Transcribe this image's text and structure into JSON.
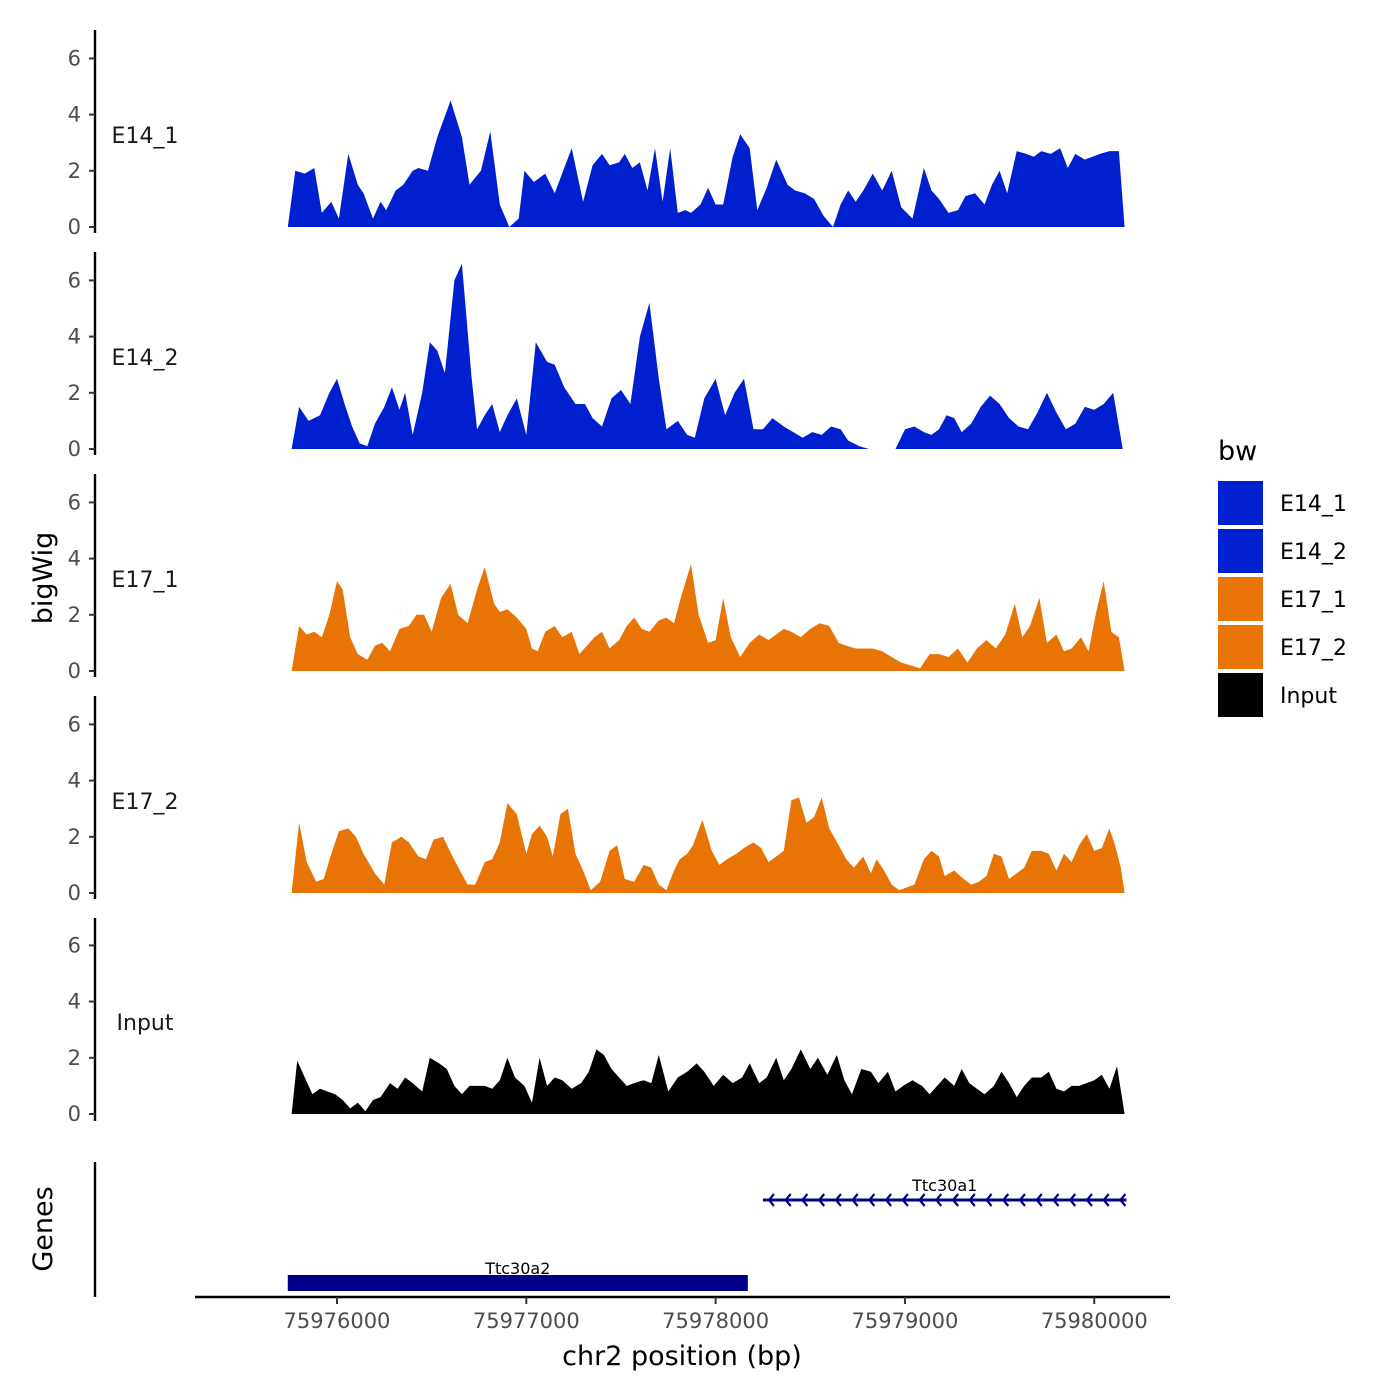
{
  "chart_data": {
    "type": "area",
    "y_axis_title": "bigWig",
    "x_axis_title": "chr2 position (bp)",
    "x_range": [
      75975250,
      75980400
    ],
    "x_ticks": [
      75976000,
      75977000,
      75978000,
      75979000,
      75980000
    ],
    "x_tick_labels": [
      "75976000",
      "75977000",
      "75978000",
      "75979000",
      "75980000"
    ],
    "y_range": [
      0,
      7
    ],
    "y_ticks": [
      0,
      2,
      4,
      6
    ],
    "y_tick_labels": [
      "0",
      "2",
      "4",
      "6"
    ],
    "tracks": [
      {
        "name": "E14_1",
        "color": "#0020D0",
        "x": [
          75975740,
          75975780,
          75975830,
          75975880,
          75975920,
          75975970,
          75976010,
          75976060,
          75976110,
          75976140,
          75976190,
          75976230,
          75976260,
          75976310,
          75976350,
          75976400,
          75976430,
          75976480,
          75976530,
          75976600,
          75976660,
          75976700,
          75976760,
          75976810,
          75976860,
          75976910,
          75976960,
          75976990,
          75977040,
          75977100,
          75977150,
          75977200,
          75977240,
          75977300,
          75977350,
          75977400,
          75977440,
          75977490,
          75977520,
          75977560,
          75977600,
          75977640,
          75977680,
          75977720,
          75977760,
          75977800,
          75977840,
          75977870,
          75977920,
          75977960,
          75978000,
          75978040,
          75978090,
          75978130,
          75978180,
          75978220,
          75978270,
          75978320,
          75978380,
          75978420,
          75978470,
          75978520,
          75978570,
          75978620,
          75978660,
          75978700,
          75978740,
          75978780,
          75978830,
          75978880,
          75978930,
          75978980,
          75979040,
          75979100,
          75979140,
          75979180,
          75979230,
          75979280,
          75979320,
          75979370,
          75979420,
          75979460,
          75979500,
          75979540,
          75979590,
          75979640,
          75979680,
          75979720,
          75979770,
          75979820,
          75979860,
          75979900,
          75979950,
          75979990,
          75980030,
          75980080,
          75980130,
          75980160
        ],
        "values": [
          0,
          2.0,
          1.9,
          2.1,
          0.5,
          0.9,
          0.3,
          2.6,
          1.5,
          1.2,
          0.3,
          0.9,
          0.6,
          1.3,
          1.5,
          2.0,
          2.1,
          2.0,
          3.2,
          4.5,
          3.2,
          1.5,
          2.0,
          3.4,
          0.8,
          0,
          0.3,
          2.0,
          1.6,
          1.9,
          1.2,
          2.1,
          2.8,
          0.9,
          2.2,
          2.6,
          2.2,
          2.3,
          2.6,
          2.1,
          2.3,
          1.3,
          2.8,
          0.9,
          2.8,
          0.5,
          0.6,
          0.5,
          0.8,
          1.4,
          0.8,
          0.8,
          2.5,
          3.3,
          2.8,
          0.6,
          1.4,
          2.4,
          1.5,
          1.3,
          1.2,
          1.0,
          0.4,
          0,
          0.8,
          1.3,
          0.9,
          1.3,
          1.9,
          1.3,
          2.0,
          0.7,
          0.3,
          2.1,
          1.3,
          1.0,
          0.5,
          0.6,
          1.1,
          1.2,
          0.8,
          1.5,
          2.0,
          1.2,
          2.7,
          2.6,
          2.5,
          2.7,
          2.6,
          2.8,
          2.1,
          2.6,
          2.4,
          2.5,
          2.6,
          2.7,
          2.7,
          0
        ],
        "label_y": 3.3
      },
      {
        "name": "E14_2",
        "color": "#0020D0",
        "x": [
          75975760,
          75975800,
          75975850,
          75975910,
          75975960,
          75976000,
          75976040,
          75976080,
          75976120,
          75976160,
          75976200,
          75976250,
          75976290,
          75976330,
          75976360,
          75976400,
          75976450,
          75976490,
          75976530,
          75976570,
          75976620,
          75976660,
          75976710,
          75976740,
          75976780,
          75976820,
          75976860,
          75976900,
          75976950,
          75977000,
          75977050,
          75977110,
          75977150,
          75977200,
          75977260,
          75977310,
          75977350,
          75977400,
          75977450,
          75977500,
          75977550,
          75977600,
          75977650,
          75977700,
          75977740,
          75977800,
          75977850,
          75977890,
          75977940,
          75978000,
          75978050,
          75978100,
          75978150,
          75978200,
          75978250,
          75978300,
          75978360,
          75978410,
          75978460,
          75978510,
          75978560,
          75978610,
          75978660,
          75978700,
          75978760,
          75978810,
          75978860,
          75978900,
          75978950,
          75979000,
          75979050,
          75979100,
          75979140,
          75979180,
          75979220,
          75979260,
          75979300,
          75979350,
          75979400,
          75979450,
          75979500,
          75979550,
          75979600,
          75979650,
          75979700,
          75979750,
          75979800,
          75979850,
          75979900,
          75979950,
          75980000,
          75980050,
          75980100,
          75980150
        ],
        "values": [
          0,
          1.5,
          1.0,
          1.2,
          2.0,
          2.5,
          1.6,
          0.8,
          0.2,
          0.1,
          0.9,
          1.5,
          2.2,
          1.4,
          2.0,
          0.5,
          2.0,
          3.8,
          3.5,
          2.7,
          6.0,
          6.6,
          2.6,
          0.7,
          1.2,
          1.6,
          0.6,
          1.2,
          1.8,
          0.5,
          3.8,
          3.1,
          3.0,
          2.2,
          1.6,
          1.6,
          1.1,
          0.8,
          1.8,
          2.1,
          1.6,
          4.0,
          5.2,
          2.5,
          0.7,
          1.0,
          0.5,
          0.4,
          1.8,
          2.5,
          1.2,
          2.0,
          2.5,
          0.7,
          0.7,
          1.1,
          0.8,
          0.6,
          0.4,
          0.6,
          0.5,
          0.8,
          0.7,
          0.3,
          0.1,
          0,
          0,
          0,
          0,
          0.7,
          0.8,
          0.6,
          0.5,
          0.7,
          1.2,
          1.1,
          0.6,
          0.9,
          1.5,
          1.9,
          1.6,
          1.1,
          0.8,
          0.7,
          1.3,
          2.0,
          1.3,
          0.7,
          0.9,
          1.5,
          1.4,
          1.6,
          2.0,
          0
        ],
        "label_y": 3.3
      },
      {
        "name": "E17_1",
        "color": "#E87405",
        "x": [
          75975760,
          75975800,
          75975840,
          75975880,
          75975920,
          75975960,
          75976000,
          75976030,
          75976070,
          75976110,
          75976160,
          75976200,
          75976240,
          75976280,
          75976330,
          75976380,
          75976420,
          75976460,
          75976500,
          75976550,
          75976600,
          75976640,
          75976690,
          75976740,
          75976780,
          75976830,
          75976860,
          75976900,
          75976950,
          75977000,
          75977030,
          75977060,
          75977100,
          75977150,
          75977190,
          75977240,
          75977280,
          75977320,
          75977360,
          75977400,
          75977440,
          75977490,
          75977530,
          75977570,
          75977610,
          75977650,
          75977700,
          75977740,
          75977780,
          75977820,
          75977870,
          75977910,
          75977960,
          75978000,
          75978040,
          75978080,
          75978130,
          75978180,
          75978230,
          75978280,
          75978320,
          75978360,
          75978400,
          75978450,
          75978500,
          75978550,
          75978600,
          75978650,
          75978690,
          75978740,
          75978790,
          75978830,
          75978880,
          75978930,
          75978980,
          75979030,
          75979080,
          75979130,
          75979180,
          75979230,
          75979280,
          75979330,
          75979380,
          75979430,
          75979480,
          75979530,
          75979580,
          75979620,
          75979660,
          75979710,
          75979750,
          75979800,
          75979840,
          75979880,
          75979930,
          75979970,
          75980010,
          75980050,
          75980090,
          75980130,
          75980160
        ],
        "values": [
          0,
          1.6,
          1.3,
          1.4,
          1.2,
          2.0,
          3.2,
          2.9,
          1.2,
          0.6,
          0.4,
          0.9,
          1.0,
          0.7,
          1.5,
          1.6,
          2.0,
          2.0,
          1.4,
          2.6,
          3.1,
          2.0,
          1.7,
          2.9,
          3.7,
          2.4,
          2.1,
          2.2,
          1.9,
          1.5,
          0.8,
          0.7,
          1.4,
          1.6,
          1.2,
          1.4,
          0.6,
          0.9,
          1.2,
          1.4,
          0.8,
          1.1,
          1.6,
          1.9,
          1.5,
          1.4,
          1.8,
          1.9,
          1.7,
          2.7,
          3.8,
          2.0,
          1.0,
          1.1,
          2.6,
          1.2,
          0.5,
          1.0,
          1.3,
          1.1,
          1.3,
          1.5,
          1.4,
          1.2,
          1.5,
          1.7,
          1.6,
          1.0,
          0.9,
          0.8,
          0.8,
          0.8,
          0.7,
          0.5,
          0.3,
          0.2,
          0.1,
          0.6,
          0.6,
          0.5,
          0.8,
          0.3,
          0.8,
          1.1,
          0.8,
          1.3,
          2.4,
          1.2,
          1.6,
          2.6,
          1.0,
          1.3,
          0.7,
          0.8,
          1.2,
          0.7,
          2.1,
          3.2,
          1.4,
          1.2,
          0
        ],
        "label_y": 3.3
      },
      {
        "name": "E17_2",
        "color": "#E87405",
        "x": [
          75975760,
          75975800,
          75975840,
          75975890,
          75975930,
          75975970,
          75976010,
          75976060,
          75976100,
          75976140,
          75976200,
          75976250,
          75976290,
          75976340,
          75976380,
          75976430,
          75976470,
          75976510,
          75976560,
          75976610,
          75976650,
          75976690,
          75976730,
          75976780,
          75976820,
          75976860,
          75976900,
          75976950,
          75977000,
          75977030,
          75977070,
          75977110,
          75977140,
          75977180,
          75977220,
          75977260,
          75977300,
          75977340,
          75977390,
          75977440,
          75977480,
          75977520,
          75977570,
          75977620,
          75977660,
          75977700,
          75977740,
          75977780,
          75977810,
          75977850,
          75977880,
          75977930,
          75977980,
          75978020,
          75978060,
          75978110,
          75978150,
          75978200,
          75978240,
          75978280,
          75978320,
          75978360,
          75978400,
          75978440,
          75978480,
          75978520,
          75978560,
          75978600,
          75978650,
          75978690,
          75978730,
          75978780,
          75978820,
          75978850,
          75978890,
          75978930,
          75978970,
          75979010,
          75979050,
          75979100,
          75979140,
          75979180,
          75979210,
          75979260,
          75979310,
          75979350,
          75979390,
          75979430,
          75979470,
          75979510,
          75979550,
          75979590,
          75979630,
          75979670,
          75979720,
          75979760,
          75979800,
          75979840,
          75979880,
          75979920,
          75979960,
          75980000,
          75980040,
          75980080,
          75980110,
          75980140,
          75980160
        ],
        "values": [
          0,
          2.5,
          1.1,
          0.4,
          0.5,
          1.4,
          2.2,
          2.3,
          2.0,
          1.4,
          0.7,
          0.3,
          1.8,
          2.0,
          1.8,
          1.3,
          1.2,
          1.9,
          2.0,
          1.3,
          0.8,
          0.3,
          0.3,
          1.1,
          1.2,
          1.8,
          3.2,
          2.8,
          1.4,
          2.1,
          2.4,
          2.0,
          1.3,
          2.8,
          3.0,
          1.4,
          0.8,
          0.1,
          0.4,
          1.5,
          1.7,
          0.5,
          0.4,
          1.0,
          0.9,
          0.3,
          0.1,
          0.8,
          1.2,
          1.4,
          1.7,
          2.6,
          1.5,
          1.0,
          1.2,
          1.4,
          1.6,
          1.8,
          1.6,
          1.1,
          1.3,
          1.5,
          3.3,
          3.4,
          2.5,
          2.7,
          3.4,
          2.3,
          1.7,
          1.2,
          0.9,
          1.3,
          0.7,
          1.2,
          0.8,
          0.3,
          0.1,
          0.2,
          0.3,
          1.2,
          1.5,
          1.3,
          0.6,
          0.8,
          0.5,
          0.3,
          0.4,
          0.6,
          1.4,
          1.3,
          0.5,
          0.7,
          0.9,
          1.5,
          1.5,
          1.4,
          0.8,
          1.4,
          1.1,
          1.7,
          2.1,
          1.5,
          1.6,
          2.3,
          1.7,
          0.9,
          0
        ],
        "label_y": 3.3
      },
      {
        "name": "Input",
        "color": "#000000",
        "x": [
          75975760,
          75975790,
          75975830,
          75975870,
          75975910,
          75975950,
          75975990,
          75976030,
          75976070,
          75976110,
          75976150,
          75976190,
          75976230,
          75976280,
          75976320,
          75976360,
          75976400,
          75976450,
          75976490,
          75976540,
          75976580,
          75976620,
          75976660,
          75976700,
          75976740,
          75976780,
          75976820,
          75976860,
          75976900,
          75976940,
          75976990,
          75977030,
          75977070,
          75977110,
          75977150,
          75977190,
          75977240,
          75977290,
          75977330,
          75977370,
          75977410,
          75977450,
          75977490,
          75977530,
          75977570,
          75977620,
          75977660,
          75977700,
          75977750,
          75977800,
          75977850,
          75977900,
          75977940,
          75977990,
          75978040,
          75978090,
          75978140,
          75978180,
          75978230,
          75978270,
          75978320,
          75978360,
          75978400,
          75978450,
          75978500,
          75978540,
          75978590,
          75978640,
          75978680,
          75978720,
          75978770,
          75978820,
          75978860,
          75978910,
          75978950,
          75978990,
          75979040,
          75979090,
          75979130,
          75979170,
          75979210,
          75979260,
          75979300,
          75979340,
          75979380,
          75979420,
          75979470,
          75979510,
          75979550,
          75979590,
          75979630,
          75979670,
          75979720,
          75979760,
          75979800,
          75979840,
          75979880,
          75979920,
          75979960,
          75980000,
          75980040,
          75980080,
          75980120,
          75980160
        ],
        "values": [
          0,
          1.9,
          1.3,
          0.7,
          0.9,
          0.8,
          0.7,
          0.5,
          0.2,
          0.4,
          0.1,
          0.5,
          0.6,
          1.1,
          0.9,
          1.3,
          1.1,
          0.8,
          2.0,
          1.8,
          1.6,
          1.0,
          0.7,
          1.0,
          1.0,
          1.0,
          0.9,
          1.2,
          2.0,
          1.3,
          1.0,
          0.4,
          2.0,
          1.0,
          1.3,
          1.2,
          0.9,
          1.1,
          1.5,
          2.3,
          2.1,
          1.6,
          1.3,
          1.0,
          1.1,
          1.2,
          1.1,
          2.1,
          0.8,
          1.3,
          1.5,
          1.8,
          1.5,
          1.0,
          1.4,
          1.1,
          1.3,
          1.8,
          1.1,
          1.3,
          2.0,
          1.2,
          1.6,
          2.3,
          1.6,
          2.0,
          1.4,
          2.1,
          1.2,
          0.7,
          1.6,
          1.5,
          1.1,
          1.5,
          0.8,
          1.0,
          1.2,
          1.0,
          0.7,
          1.0,
          1.3,
          1.0,
          1.6,
          1.1,
          0.9,
          0.7,
          1.0,
          1.5,
          1.1,
          0.6,
          1.0,
          1.3,
          1.3,
          1.5,
          0.9,
          0.8,
          1.0,
          1.0,
          1.1,
          1.2,
          1.4,
          0.9,
          1.7,
          0
        ],
        "label_y": 3.3
      }
    ],
    "genes": [
      {
        "name": "Ttc30a1",
        "start": 75978250,
        "end": 75980170,
        "strand": "-",
        "color": "#00008B",
        "row": 0
      },
      {
        "name": "Ttc30a2",
        "start": 75975740,
        "end": 75978170,
        "strand": "+",
        "color": "#00008B",
        "row": 1
      }
    ],
    "genes_axis_title": "Genes",
    "legend": {
      "title": "bw",
      "entries": [
        {
          "label": "E14_1",
          "color": "#0020D0"
        },
        {
          "label": "E14_2",
          "color": "#0020D0"
        },
        {
          "label": "E17_1",
          "color": "#E87405"
        },
        {
          "label": "E17_2",
          "color": "#E87405"
        },
        {
          "label": "Input",
          "color": "#000000"
        }
      ]
    }
  }
}
